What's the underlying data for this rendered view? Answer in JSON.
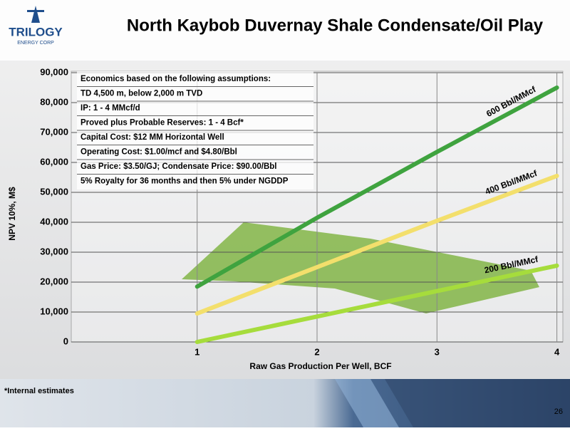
{
  "logo": {
    "name": "TRILOGY",
    "subtitle": "ENERGY CORP"
  },
  "footer": {
    "note": "*Internal estimates",
    "page": "26"
  },
  "chart_data": {
    "type": "line",
    "title": "North Kaybob Duvernay Shale Condensate/Oil Play",
    "x_label": "Raw Gas Production Per Well, BCF",
    "y_label": "NPV 10%, M$",
    "annotations": [
      "Economics based on the following assumptions:",
      "TD 4,500 m, below 2,000 m TVD",
      "IP: 1 - 4 MMcf/d",
      "Proved plus Probable Reserves: 1 - 4 Bcf*",
      "Capital Cost: $12 MM Horizontal Well",
      "Operating Cost: $1.00/mcf and $4.80/Bbl",
      "Gas Price: $3.50/GJ; Condensate Price: $90.00/Bbl",
      "5% Royalty for 36 months and then 5% under NGDDP"
    ],
    "x": [
      1,
      2,
      3,
      4
    ],
    "xlim": [
      -0.05,
      4.05
    ],
    "xticks": [
      1,
      2,
      3,
      4
    ],
    "ylim": [
      0,
      90000
    ],
    "yticks": [
      0,
      {
        "value": 10000,
        "label": "10,000"
      },
      {
        "value": 20000,
        "label": "20,000"
      },
      {
        "value": 30000,
        "label": "30,000"
      },
      {
        "value": 40000,
        "label": "40,000"
      },
      {
        "value": 50000,
        "label": "50,000"
      },
      {
        "value": 60000,
        "label": "60,000"
      },
      {
        "value": 70000,
        "label": "70,000"
      },
      {
        "value": 80000,
        "label": "80,000"
      },
      {
        "value": 90000,
        "label": "90,000"
      }
    ],
    "grid": true,
    "series": [
      {
        "name": "600 Bbl/MMcf",
        "color": "#3fa33f",
        "values": [
          18500,
          41500,
          63500,
          85000
        ]
      },
      {
        "name": "400 Bbl/MMcf",
        "color": "#f3df6c",
        "values": [
          9500,
          25000,
          40500,
          55500
        ]
      },
      {
        "name": "200 Bbl/MMcf",
        "color": "#a6dc3c",
        "values": [
          0,
          8500,
          17000,
          25500
        ]
      }
    ]
  }
}
